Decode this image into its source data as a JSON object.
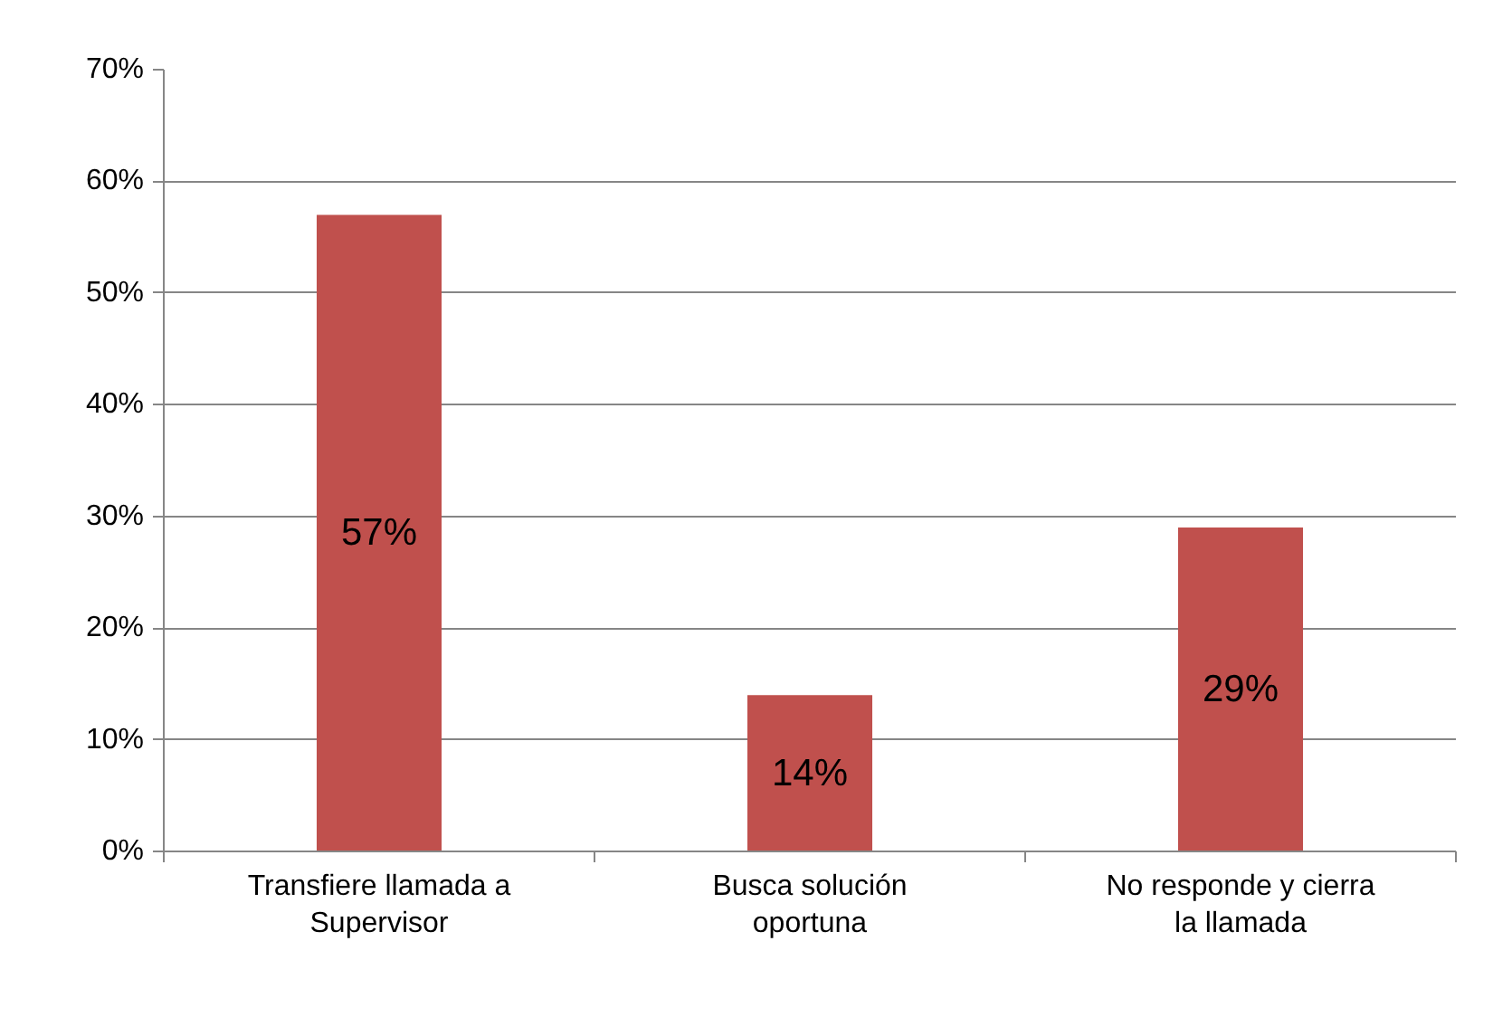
{
  "chart_data": {
    "type": "bar",
    "categories": [
      "Transfiere llamada a Supervisor",
      "Busca solución oportuna",
      "No responde y cierra la llamada"
    ],
    "values": [
      57,
      14,
      29
    ],
    "value_labels": [
      "57%",
      "14%",
      "29%"
    ],
    "color": "#c0504d",
    "ylim": [
      0,
      70
    ],
    "yticks": [
      {
        "value": 0,
        "label": "0%"
      },
      {
        "value": 10,
        "label": "10%"
      },
      {
        "value": 20,
        "label": "20%"
      },
      {
        "value": 30,
        "label": "30%"
      },
      {
        "value": 40,
        "label": "40%"
      },
      {
        "value": 50,
        "label": "50%"
      },
      {
        "value": 60,
        "label": "60%"
      },
      {
        "value": 70,
        "label": "70%"
      }
    ],
    "grid": "y"
  }
}
